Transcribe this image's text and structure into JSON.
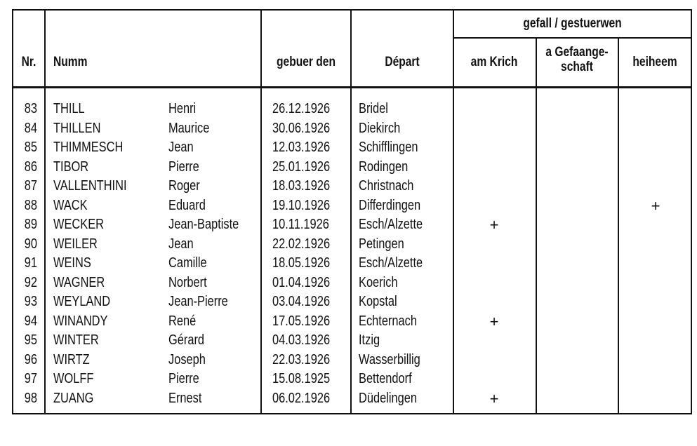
{
  "headers": {
    "nr": "Nr.",
    "numm": "Numm",
    "gebuer_den": "gebuer den",
    "depart": "Départ",
    "group": "gefall / gestuerwen",
    "am_krich": "am Krich",
    "gefaangeschaft_1": "a Gefaange-",
    "gefaangeschaft_2": "schaft",
    "heiheem": "heiheem"
  },
  "mark_symbol": "+",
  "rows": [
    {
      "nr": "83",
      "surname": "THILL",
      "firstname": "Henri",
      "born": "26.12.1926",
      "depart": "Bridel",
      "am_krich": false,
      "gefaangeschaft": false,
      "heiheem": false
    },
    {
      "nr": "84",
      "surname": "THILLEN",
      "firstname": "Maurice",
      "born": "30.06.1926",
      "depart": "Diekirch",
      "am_krich": false,
      "gefaangeschaft": false,
      "heiheem": false
    },
    {
      "nr": "85",
      "surname": "THIMMESCH",
      "firstname": "Jean",
      "born": "12.03.1926",
      "depart": "Schifflingen",
      "am_krich": false,
      "gefaangeschaft": false,
      "heiheem": false
    },
    {
      "nr": "86",
      "surname": "TIBOR",
      "firstname": "Pierre",
      "born": "25.01.1926",
      "depart": "Rodingen",
      "am_krich": false,
      "gefaangeschaft": false,
      "heiheem": false
    },
    {
      "nr": "87",
      "surname": "VALLENTHINI",
      "firstname": "Roger",
      "born": "18.03.1926",
      "depart": "Christnach",
      "am_krich": false,
      "gefaangeschaft": false,
      "heiheem": false
    },
    {
      "nr": "88",
      "surname": "WACK",
      "firstname": "Eduard",
      "born": "19.10.1926",
      "depart": "Differdingen",
      "am_krich": false,
      "gefaangeschaft": false,
      "heiheem": true
    },
    {
      "nr": "89",
      "surname": "WECKER",
      "firstname": "Jean-Baptiste",
      "born": "10.11.1926",
      "depart": "Esch/Alzette",
      "am_krich": true,
      "gefaangeschaft": false,
      "heiheem": false
    },
    {
      "nr": "90",
      "surname": "WEILER",
      "firstname": "Jean",
      "born": "22.02.1926",
      "depart": "Petingen",
      "am_krich": false,
      "gefaangeschaft": false,
      "heiheem": false
    },
    {
      "nr": "91",
      "surname": "WEINS",
      "firstname": "Camille",
      "born": "18.05.1926",
      "depart": "Esch/Alzette",
      "am_krich": false,
      "gefaangeschaft": false,
      "heiheem": false
    },
    {
      "nr": "92",
      "surname": "WAGNER",
      "firstname": "Norbert",
      "born": "01.04.1926",
      "depart": "Koerich",
      "am_krich": false,
      "gefaangeschaft": false,
      "heiheem": false
    },
    {
      "nr": "93",
      "surname": "WEYLAND",
      "firstname": "Jean-Pierre",
      "born": "03.04.1926",
      "depart": "Kopstal",
      "am_krich": false,
      "gefaangeschaft": false,
      "heiheem": false
    },
    {
      "nr": "94",
      "surname": "WINANDY",
      "firstname": "René",
      "born": "17.05.1926",
      "depart": "Echternach",
      "am_krich": true,
      "gefaangeschaft": false,
      "heiheem": false
    },
    {
      "nr": "95",
      "surname": "WINTER",
      "firstname": "Gérard",
      "born": "04.03.1926",
      "depart": "Itzig",
      "am_krich": false,
      "gefaangeschaft": false,
      "heiheem": false
    },
    {
      "nr": "96",
      "surname": "WIRTZ",
      "firstname": "Joseph",
      "born": "22.03.1926",
      "depart": "Wasserbillig",
      "am_krich": false,
      "gefaangeschaft": false,
      "heiheem": false
    },
    {
      "nr": "97",
      "surname": "WOLFF",
      "firstname": "Pierre",
      "born": "15.08.1925",
      "depart": "Bettendorf",
      "am_krich": false,
      "gefaangeschaft": false,
      "heiheem": false
    },
    {
      "nr": "98",
      "surname": "ZUANG",
      "firstname": "Ernest",
      "born": "06.02.1926",
      "depart": "Düdelingen",
      "am_krich": true,
      "gefaangeschaft": false,
      "heiheem": false
    }
  ]
}
